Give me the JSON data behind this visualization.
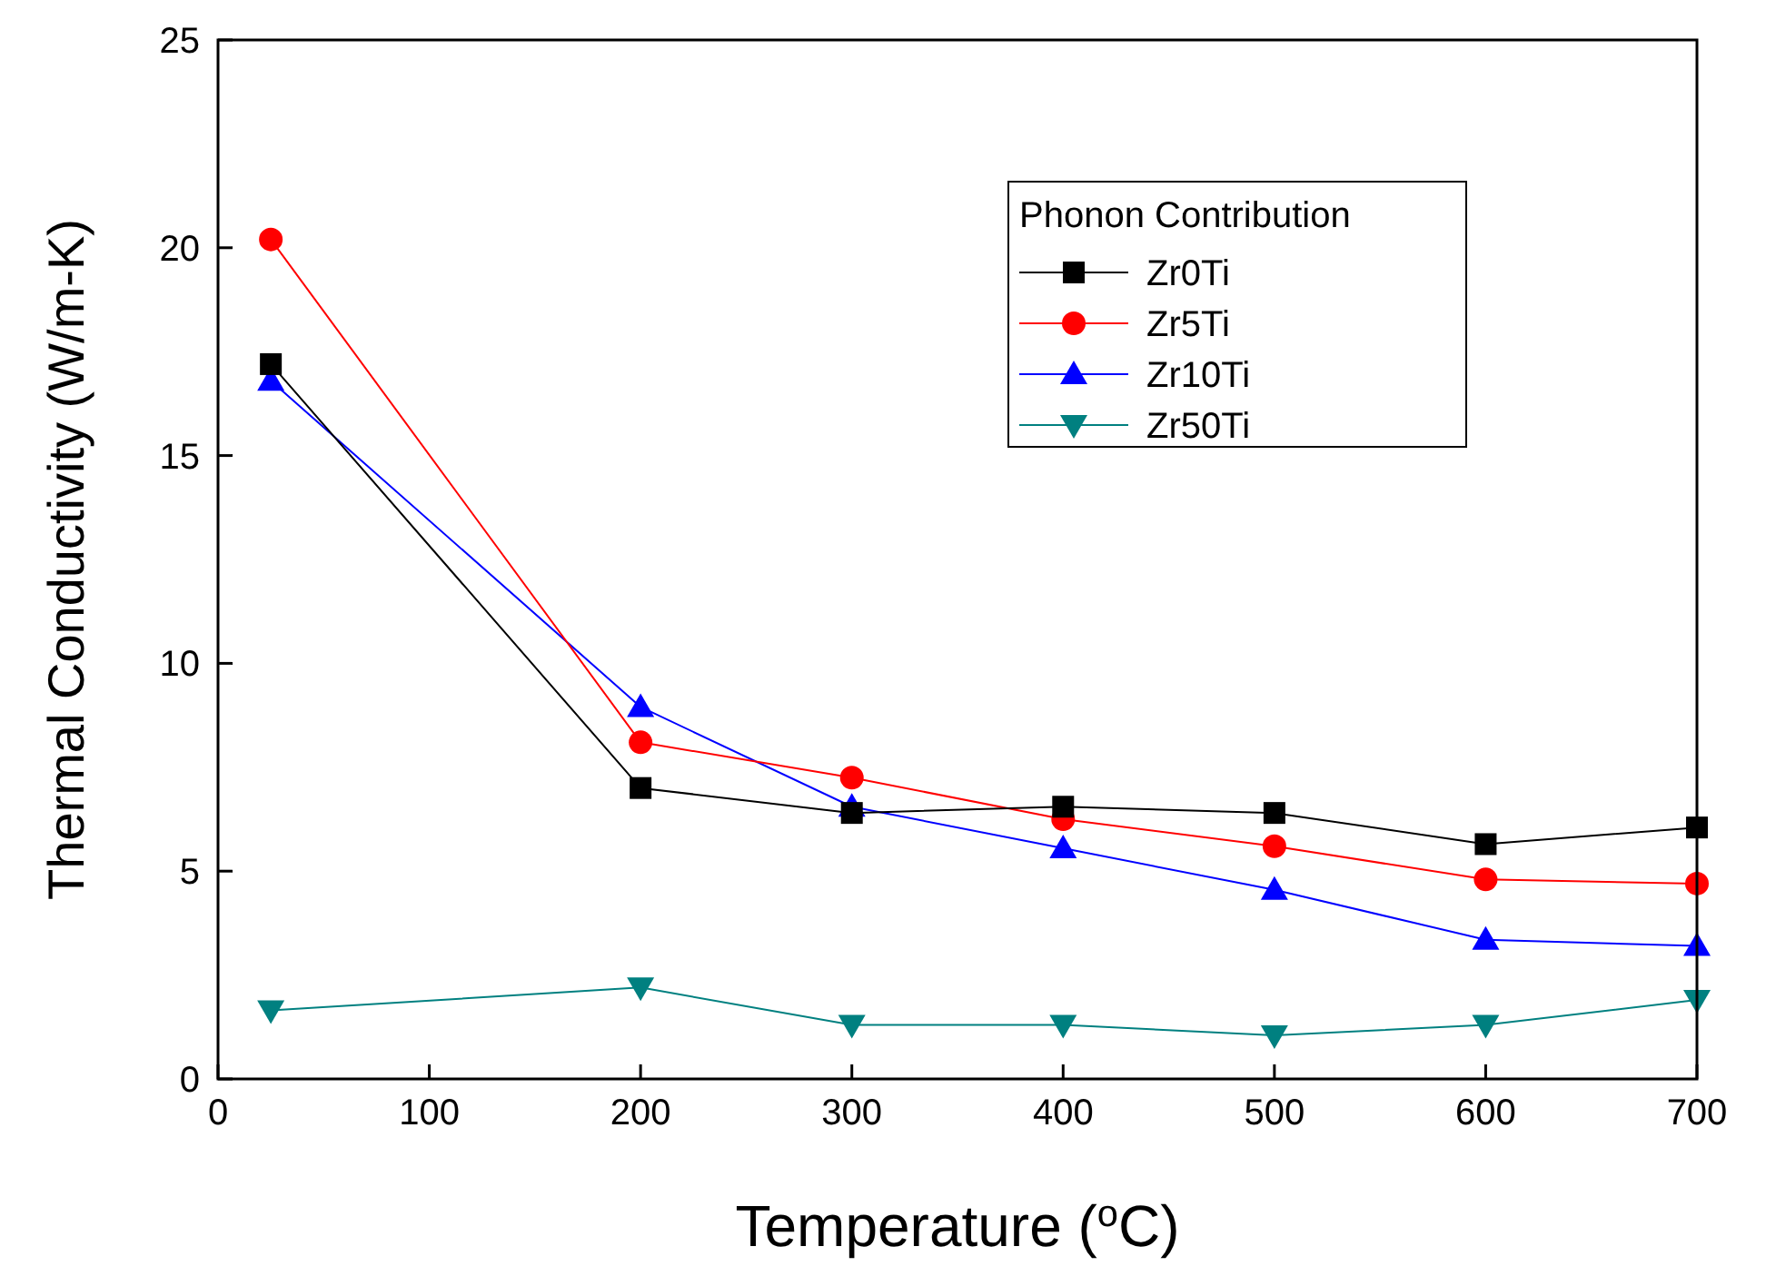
{
  "chart_data": {
    "type": "line",
    "xlabel": "Temperature ($^{o}$C)",
    "ylabel": "Thermal Conductivity (W/m-K)",
    "legend_title": "Phonon Contribution",
    "legend": "top right",
    "grid": false,
    "xlim": [
      0,
      700
    ],
    "xticks": [
      0,
      100,
      200,
      300,
      400,
      500,
      600,
      700
    ],
    "ylim": [
      0,
      25
    ],
    "yticks": [
      0,
      5,
      10,
      15,
      20,
      25
    ],
    "x": [
      25,
      200,
      300,
      400,
      500,
      600,
      700
    ],
    "series": [
      {
        "name": "Zr0Ti",
        "color": "#000000",
        "marker": "square",
        "values": [
          17.2,
          7.0,
          6.4,
          6.55,
          6.4,
          5.65,
          6.05
        ]
      },
      {
        "name": "Zr5Ti",
        "color": "#ff0000",
        "marker": "circle",
        "values": [
          20.2,
          8.1,
          7.25,
          6.25,
          5.6,
          4.8,
          4.7
        ]
      },
      {
        "name": "Zr10Ti",
        "color": "#0000ff",
        "marker": "triangle",
        "values": [
          16.8,
          8.95,
          6.55,
          5.55,
          4.55,
          3.35,
          3.2
        ]
      },
      {
        "name": "Zr50Ti",
        "color": "#008080",
        "marker": "triangle-down",
        "values": [
          1.65,
          2.2,
          1.3,
          1.3,
          1.05,
          1.3,
          1.9
        ]
      }
    ]
  }
}
